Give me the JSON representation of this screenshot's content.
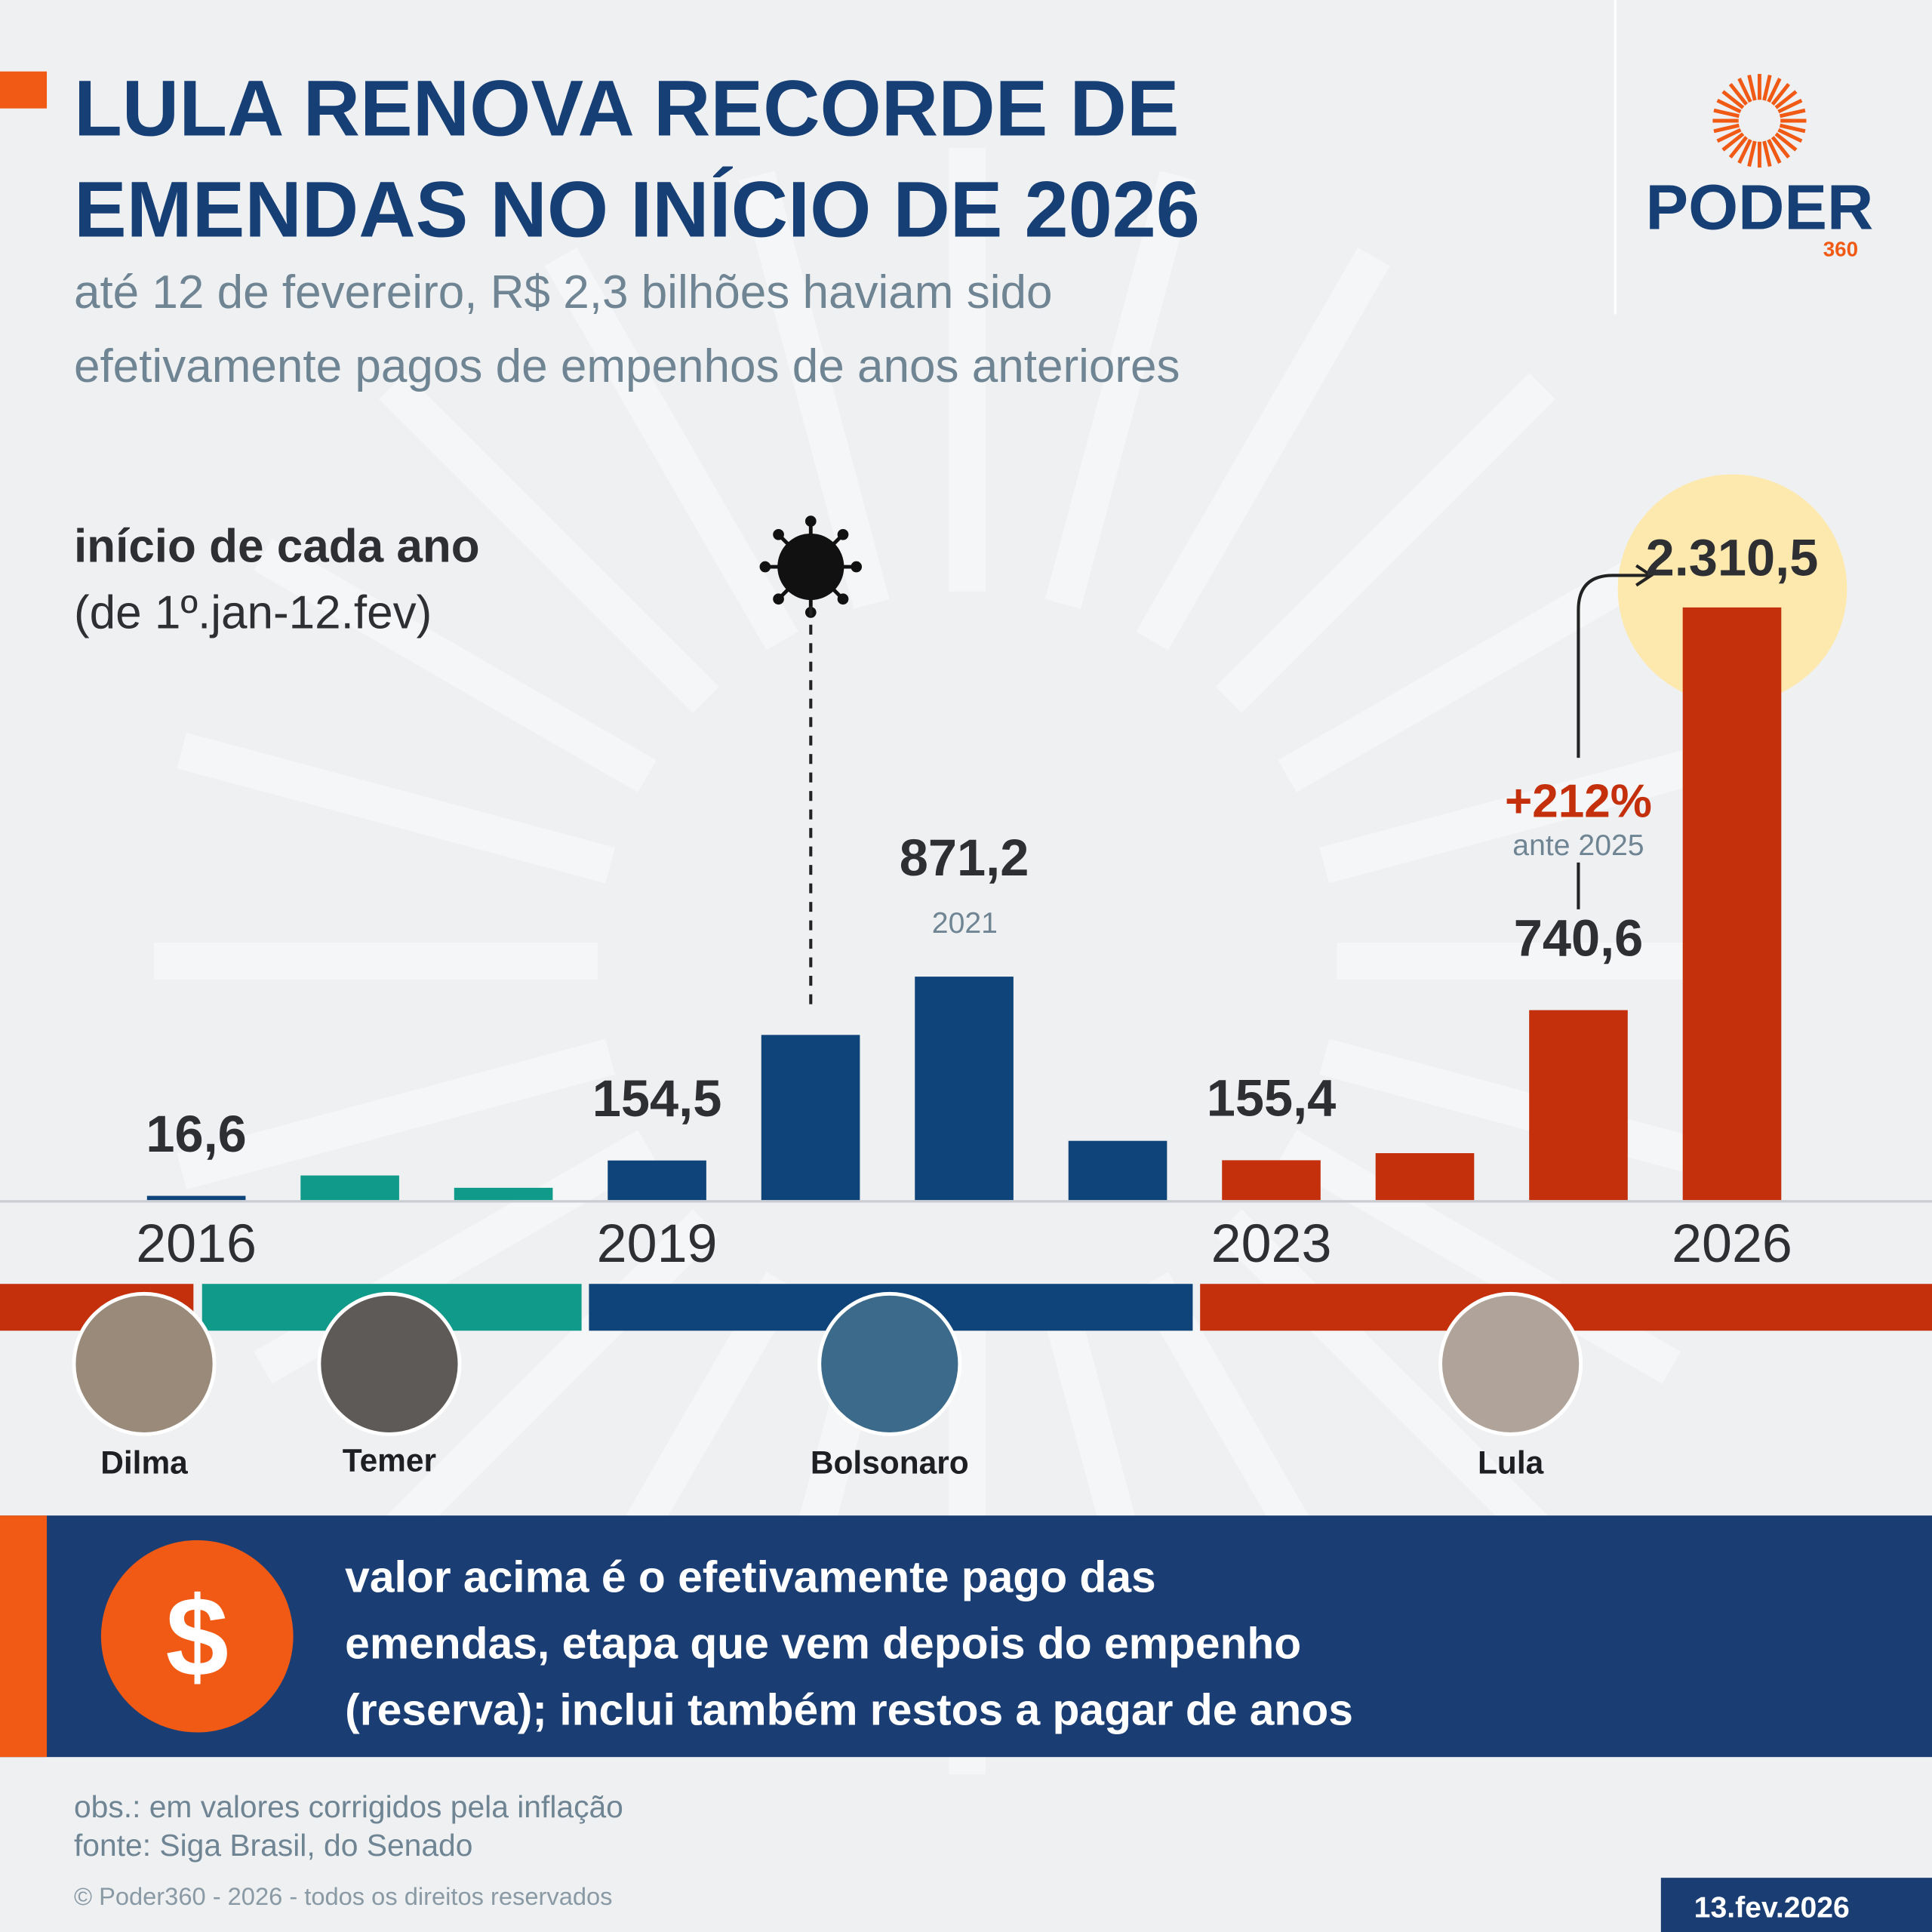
{
  "header": {
    "title_lines": [
      "LULA RENOVA RECORDE DE",
      "EMENDAS NO INÍCIO DE 2026"
    ],
    "subtitle_lines": [
      "até 12 de fevereiro, R$ 2,3 bilhões haviam sido",
      "efetivamente pagos de empenhos de anos anteriores"
    ],
    "logo": "PODER",
    "logo_sub": "360"
  },
  "chart_data": {
    "type": "bar",
    "axis_title": "início de cada ano",
    "axis_subtitle": "(de 1º.jan-12.fev)",
    "categories": [
      "2016",
      null,
      null,
      "2019",
      null,
      null,
      null,
      "2023",
      null,
      null,
      "2026"
    ],
    "values": [
      16.6,
      96,
      48,
      154.5,
      644,
      871.2,
      231,
      155.4,
      183,
      740.6,
      2310.5
    ],
    "value_labels": [
      "16,6",
      null,
      null,
      "154,5",
      null,
      "871,2",
      null,
      "155,4",
      null,
      "740,6",
      "2.310,5"
    ],
    "colors": [
      "#0e4479",
      "#0f9a8a",
      "#0f9a8a",
      "#0e4479",
      "#0e4479",
      "#0e4479",
      "#0e4479",
      "#c4300c",
      "#c4300c",
      "#c4300c",
      "#c4300c"
    ],
    "ylim": [
      0,
      2310.5
    ],
    "annotations": {
      "year_2021": "2021",
      "change": "+212%",
      "change_note": "ante 2025"
    },
    "presidents": [
      "Dilma",
      "Temer",
      "Bolsonaro",
      "Lula"
    ]
  },
  "note": {
    "symbol": "$",
    "lines": [
      "valor acima é o efetivamente pago das",
      "emendas, etapa que vem depois do empenho",
      "(reserva); inclui também restos a pagar de anos"
    ]
  },
  "footer": {
    "obs": "obs.: em valores corrigidos pela inflação",
    "source": "fonte: Siga Brasil, do Senado",
    "copyright": "© Poder360 - 2026 - todos os direitos reservados",
    "date": "13.fev.2026"
  }
}
